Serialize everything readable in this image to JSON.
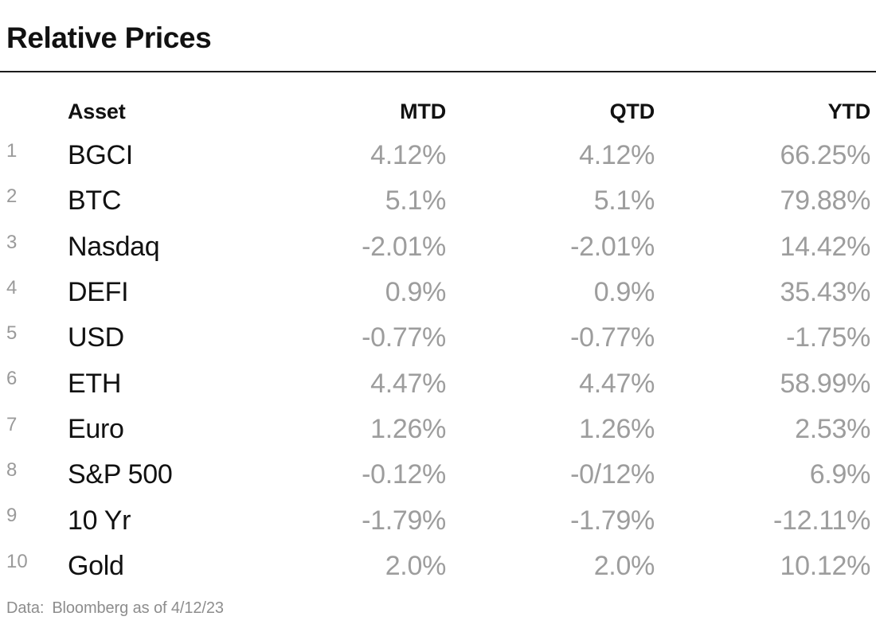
{
  "title": "Relative Prices",
  "chart_data": {
    "type": "table",
    "title": "Relative Prices",
    "columns": [
      "Asset",
      "MTD",
      "QTD",
      "YTD"
    ],
    "row_numbers": [
      "1",
      "2",
      "3",
      "4",
      "5",
      "6",
      "7",
      "8",
      "9",
      "10"
    ],
    "rows": [
      [
        "BGCI",
        "4.12%",
        "4.12%",
        "66.25%"
      ],
      [
        "BTC",
        "5.1%",
        "5.1%",
        "79.88%"
      ],
      [
        "Nasdaq",
        "-2.01%",
        "-2.01%",
        "14.42%"
      ],
      [
        "DEFI",
        "0.9%",
        "0.9%",
        "35.43%"
      ],
      [
        "USD",
        "-0.77%",
        "-0.77%",
        "-1.75%"
      ],
      [
        "ETH",
        "4.47%",
        "4.47%",
        "58.99%"
      ],
      [
        "Euro",
        "1.26%",
        "1.26%",
        "2.53%"
      ],
      [
        "S&P 500",
        "-0.12%",
        "-0/12%",
        "6.9%"
      ],
      [
        "10 Yr",
        "-1.79%",
        "-1.79%",
        "-12.11%"
      ],
      [
        "Gold",
        "2.0%",
        "2.0%",
        "10.12%"
      ]
    ],
    "source_note": "Data: Bloomberg as of 4/12/23"
  },
  "footer": {
    "label": "Data:",
    "text": "Bloomberg as of 4/12/23"
  },
  "colors": {
    "background": "#ffffff",
    "text": "#111111",
    "value_gray": "#9d9d9d",
    "row_number_gray": "#9a9a9a",
    "footer_gray": "#8d8d8d",
    "rule": "#1c1c1c"
  }
}
